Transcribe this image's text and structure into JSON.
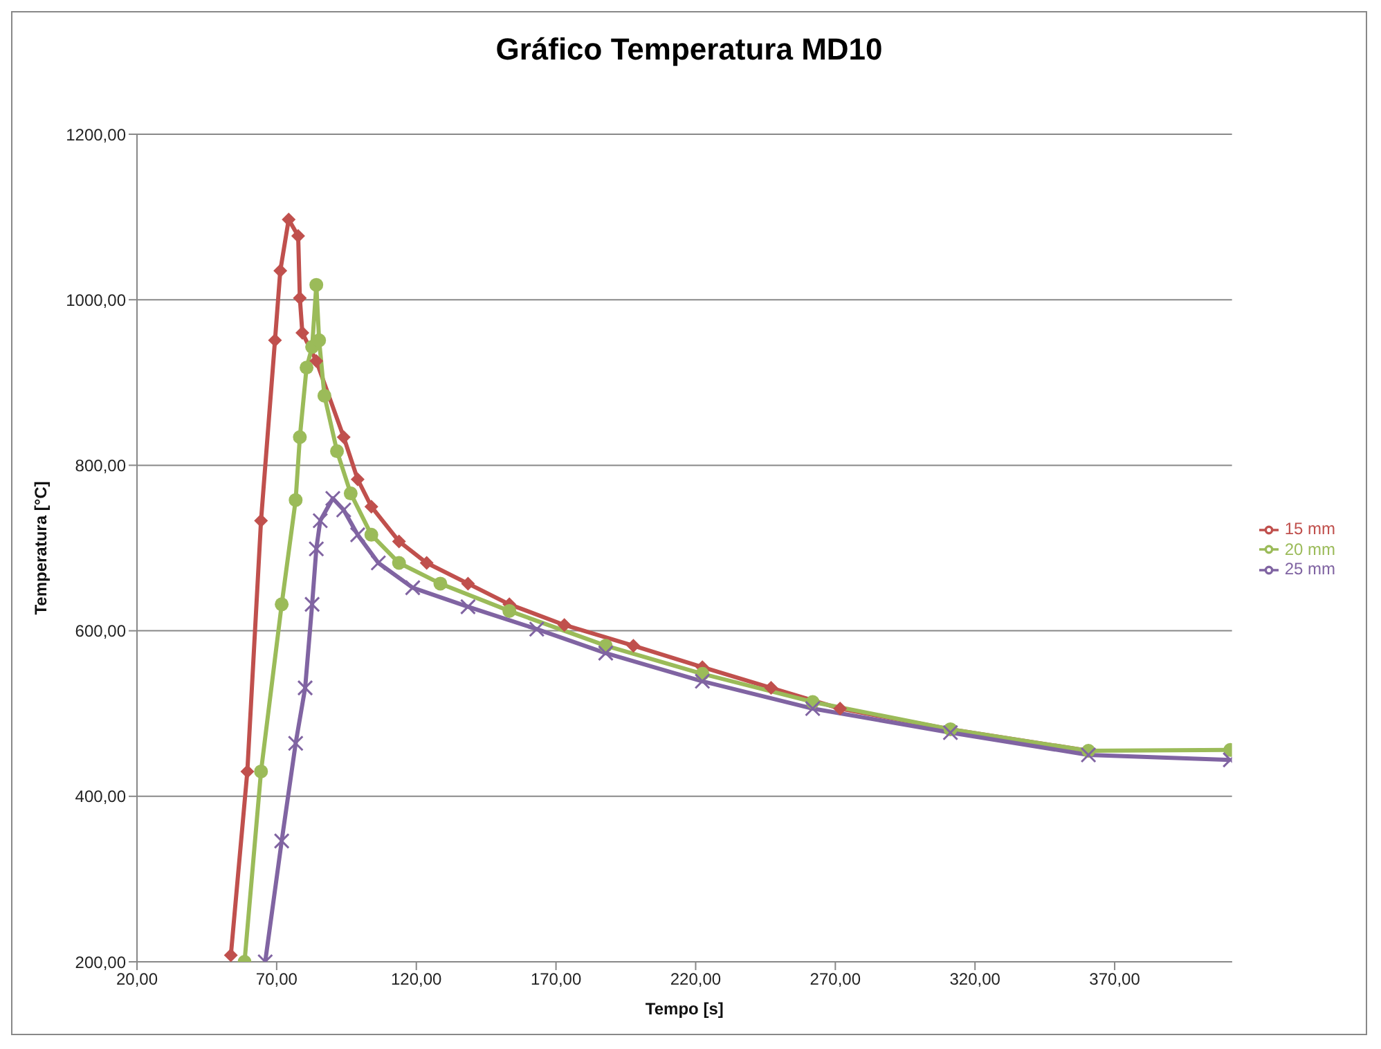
{
  "chart_data": {
    "type": "line",
    "line_style": "solid",
    "title": "Gráfico Temperatura MD10",
    "xlabel": "Tempo [s]",
    "ylabel": "Temperatura [°C]",
    "xlim": [
      20,
      412
    ],
    "xticks": [
      {
        "value": 20,
        "label": "20,00"
      },
      {
        "value": 70,
        "label": "70,00"
      },
      {
        "value": 120,
        "label": "120,00"
      },
      {
        "value": 170,
        "label": "170,00"
      },
      {
        "value": 220,
        "label": "220,00"
      },
      {
        "value": 270,
        "label": "270,00"
      },
      {
        "value": 320,
        "label": "320,00"
      },
      {
        "value": 370,
        "label": "370,00"
      }
    ],
    "ylim": [
      200,
      1200
    ],
    "yticks": [
      {
        "value": 200,
        "label": "200,00"
      },
      {
        "value": 400,
        "label": "400,00"
      },
      {
        "value": 600,
        "label": "600,00"
      },
      {
        "value": 800,
        "label": "800,00"
      },
      {
        "value": 1000,
        "label": "1000,00"
      },
      {
        "value": 1200,
        "label": "1200,00"
      }
    ],
    "grid": "y",
    "legend": "right",
    "series": [
      {
        "name": "15 mm",
        "color": "#c0504d",
        "marker": "diamond",
        "x": [
          53.6,
          59.5,
          64.4,
          69.4,
          71.3,
          74.3,
          77.7,
          78.3,
          79.2,
          84.2,
          94,
          99,
          103.9,
          113.8,
          123.7,
          138.5,
          153.3,
          173,
          197.7,
          222.4,
          247,
          271.7,
          311.2,
          360.6
        ],
        "values": [
          208,
          430,
          733,
          951,
          1035,
          1097,
          1077,
          1002,
          960,
          926,
          834,
          783,
          750,
          708,
          682,
          657,
          632,
          607,
          582,
          556,
          531,
          506,
          481,
          455
        ]
      },
      {
        "name": "20 mm",
        "color": "#9bbb59",
        "marker": "circle",
        "x": [
          58.5,
          64.4,
          71.8,
          76.8,
          78.3,
          80.7,
          82.7,
          84.2,
          85.2,
          87.1,
          91.6,
          96.5,
          103.9,
          113.8,
          128.6,
          153.3,
          187.8,
          222.4,
          261.9,
          311.2,
          360.6,
          411.4
        ],
        "values": [
          200,
          430,
          632,
          758,
          834,
          918,
          943,
          1018,
          951,
          884,
          817,
          766,
          716,
          682,
          657,
          624,
          582,
          548,
          514,
          481,
          455,
          456
        ]
      },
      {
        "name": "25 mm",
        "color": "#8064a2",
        "marker": "cross",
        "x": [
          65.9,
          71.8,
          76.8,
          80.2,
          82.7,
          84.2,
          85.6,
          90.1,
          94,
          99,
          106.4,
          118.7,
          138.5,
          163.1,
          187.8,
          222.4,
          261.9,
          311.2,
          360.6,
          411.4
        ],
        "values": [
          200,
          346,
          464,
          531,
          632,
          699,
          733,
          760,
          746,
          716,
          682,
          652,
          629,
          602,
          573,
          539,
          506,
          477,
          450,
          444
        ]
      }
    ]
  }
}
